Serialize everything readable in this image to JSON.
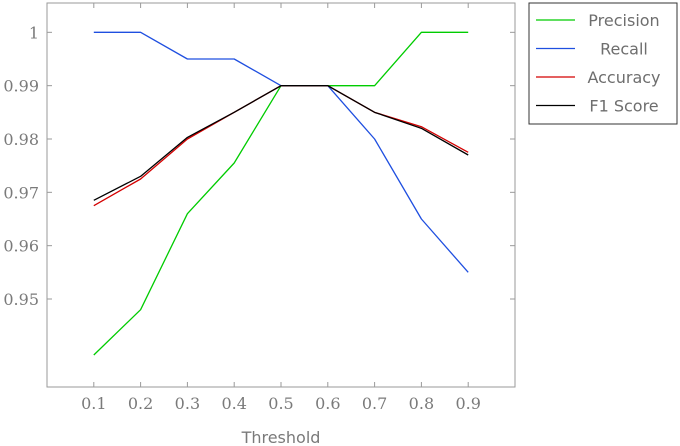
{
  "chart_data": {
    "type": "line",
    "xlabel": "Threshold",
    "ylabel": "",
    "x": [
      0.1,
      0.2,
      0.3,
      0.4,
      0.5,
      0.6,
      0.7,
      0.8,
      0.9
    ],
    "x_tick_labels": [
      "0.1",
      "0.2",
      "0.3",
      "0.4",
      "0.5",
      "0.6",
      "0.7",
      "0.8",
      "0.9"
    ],
    "xlim": [
      0.0,
      1.0
    ],
    "y_ticks": [
      0.95,
      0.96,
      0.97,
      0.98,
      0.99,
      1
    ],
    "y_tick_labels": [
      "0.95",
      "0.96",
      "0.97",
      "0.98",
      "0.99",
      "1"
    ],
    "ylim": [
      0.9335,
      1.0055
    ],
    "grid": false,
    "legend_position": "outside-top-right",
    "series": [
      {
        "name": "Precision",
        "color": "#00cc00",
        "values": [
          0.9395,
          0.948,
          0.966,
          0.9755,
          0.99,
          0.99,
          0.99,
          1.0,
          1.0
        ]
      },
      {
        "name": "Recall",
        "color": "#1f4fe0",
        "values": [
          1.0,
          1.0,
          0.995,
          0.995,
          0.99,
          0.99,
          0.98,
          0.965,
          0.955
        ]
      },
      {
        "name": "Accuracy",
        "color": "#d40000",
        "values": [
          0.9675,
          0.9725,
          0.98,
          0.985,
          0.99,
          0.99,
          0.985,
          0.9823,
          0.9775
        ]
      },
      {
        "name": "F1 Score",
        "color": "#000000",
        "values": [
          0.9685,
          0.973,
          0.9803,
          0.985,
          0.99,
          0.99,
          0.985,
          0.982,
          0.977
        ]
      }
    ]
  }
}
